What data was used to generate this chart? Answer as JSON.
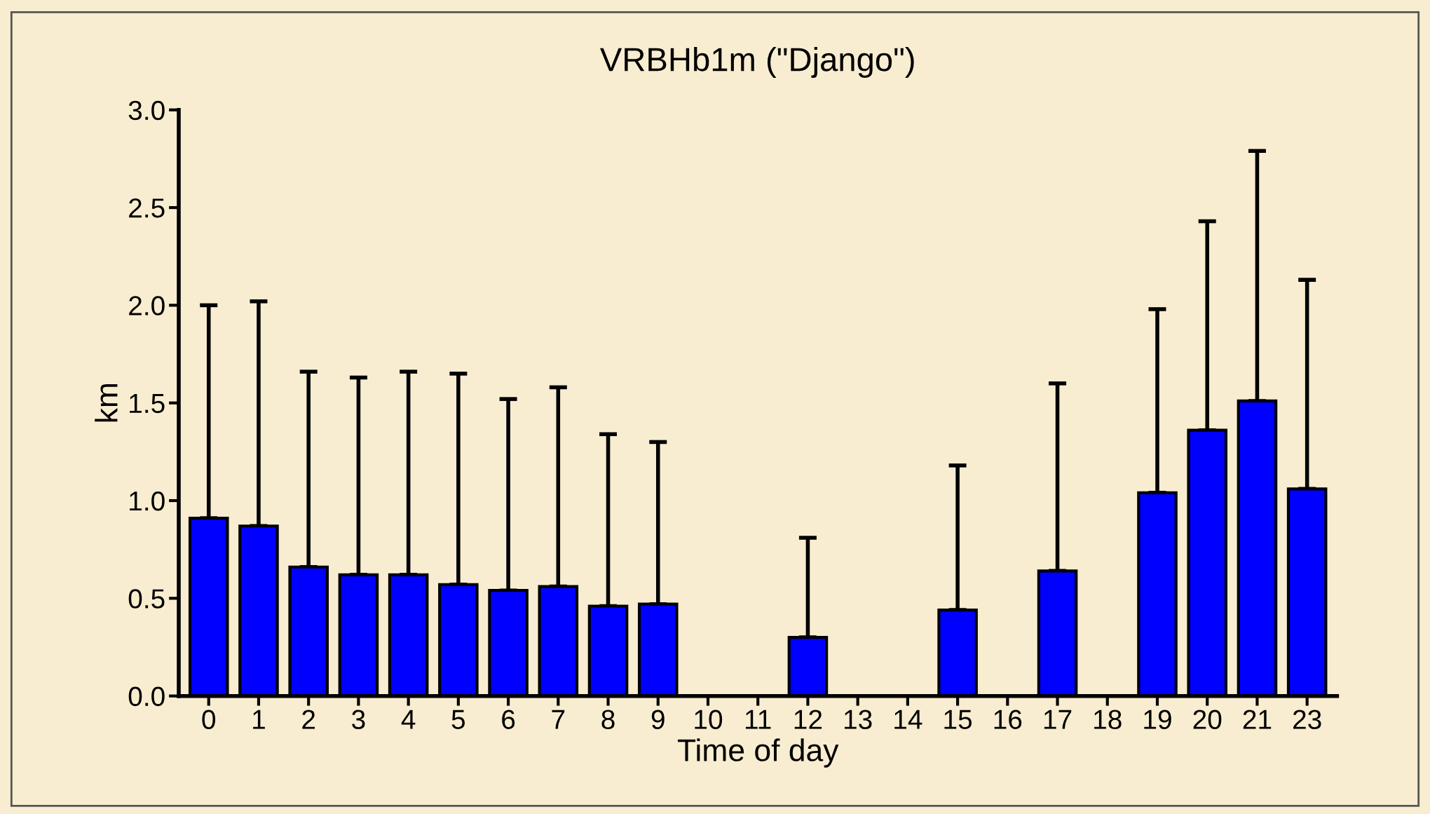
{
  "chart_data": {
    "type": "bar",
    "title": "VRBHb1m (\"Django\")",
    "xlabel": "Time of day",
    "ylabel": "km",
    "categories": [
      "0",
      "1",
      "2",
      "3",
      "4",
      "5",
      "6",
      "7",
      "8",
      "9",
      "10",
      "11",
      "12",
      "13",
      "14",
      "15",
      "16",
      "17",
      "18",
      "19",
      "20",
      "21",
      "23"
    ],
    "values": [
      0.91,
      0.87,
      0.66,
      0.62,
      0.62,
      0.57,
      0.54,
      0.56,
      0.46,
      0.47,
      null,
      null,
      0.3,
      null,
      null,
      0.44,
      null,
      0.64,
      null,
      1.04,
      1.36,
      1.51,
      1.06
    ],
    "errors": [
      [
        0.91,
        2.0
      ],
      [
        0.87,
        2.02
      ],
      [
        0.66,
        1.66
      ],
      [
        0.62,
        1.63
      ],
      [
        0.62,
        1.66
      ],
      [
        0.57,
        1.65
      ],
      [
        0.54,
        1.52
      ],
      [
        0.56,
        1.58
      ],
      [
        0.46,
        1.34
      ],
      [
        0.47,
        1.3
      ],
      null,
      null,
      [
        0.3,
        0.81
      ],
      null,
      null,
      [
        0.44,
        1.18
      ],
      null,
      [
        0.64,
        1.6
      ],
      null,
      [
        1.04,
        1.98
      ],
      [
        1.36,
        2.43
      ],
      [
        1.51,
        2.79
      ],
      [
        1.06,
        2.13
      ]
    ],
    "color": "#0000ff",
    "ylim": [
      0,
      3.0
    ],
    "yticks": [
      {
        "value": 0,
        "label": "0.0"
      },
      {
        "value": 0.5,
        "label": "0.5"
      },
      {
        "value": 1.0,
        "label": "1.0"
      },
      {
        "value": 1.5,
        "label": "1.5"
      },
      {
        "value": 2.0,
        "label": "2.0"
      },
      {
        "value": 2.5,
        "label": "2.5"
      },
      {
        "value": 3.0,
        "label": "3.0"
      }
    ],
    "grid": false
  }
}
